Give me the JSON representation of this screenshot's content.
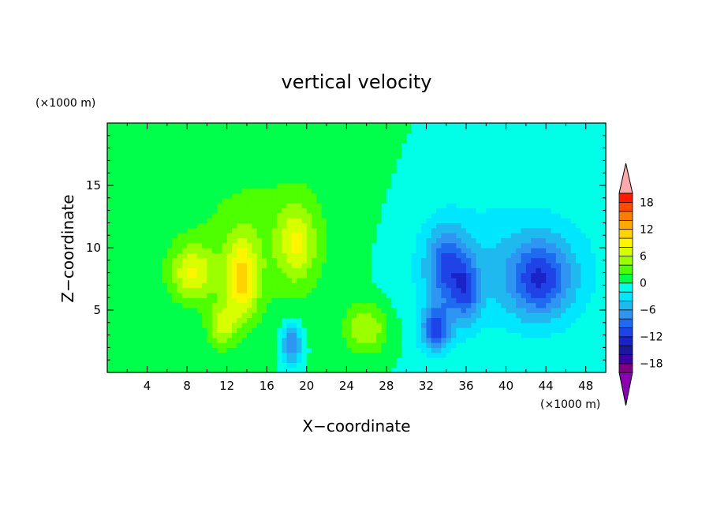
{
  "chart_data": {
    "type": "heatmap",
    "title": "vertical velocity",
    "xlabel": "X−coordinate",
    "ylabel": "Z−coordinate",
    "x_unit": "(×1000 m)",
    "y_unit": "(×1000 m)",
    "xlim": [
      0,
      50
    ],
    "ylim": [
      0,
      20
    ],
    "x_ticks": [
      4,
      8,
      12,
      16,
      20,
      24,
      28,
      32,
      36,
      40,
      44,
      48
    ],
    "y_ticks": [
      5,
      10,
      15
    ],
    "colorbar": {
      "min": -20,
      "max": 20,
      "step": 2,
      "tick_values": [
        18,
        12,
        6,
        0,
        -6,
        -12,
        -18
      ],
      "tick_labels": [
        "18",
        "12",
        "6",
        "0",
        "−6",
        "−12",
        "−18"
      ],
      "extend": "both",
      "colors": [
        "#7f007f",
        "#3d00a8",
        "#1d17a0",
        "#1a23c8",
        "#1f43e6",
        "#1f6bf0",
        "#2f95f2",
        "#1fb9f0",
        "#00e6ff",
        "#00ffe6",
        "#00ff4a",
        "#4dff00",
        "#9cff00",
        "#d8ff00",
        "#fff500",
        "#ffd200",
        "#ffa800",
        "#ff7c00",
        "#ff4a00",
        "#ff1a00"
      ],
      "over_color": "#ffaaaa",
      "under_color": "#8a00b3"
    },
    "features": [
      {
        "x": 8.5,
        "z": 8.0,
        "amp": 7,
        "sx": 2.2,
        "sz": 2.2
      },
      {
        "x": 13.5,
        "z": 7.5,
        "amp": 9,
        "sx": 1.6,
        "sz": 3.2
      },
      {
        "x": 11.5,
        "z": 3.8,
        "amp": 6,
        "sx": 1.4,
        "sz": 1.8
      },
      {
        "x": 19.0,
        "z": 10.5,
        "amp": 6,
        "sx": 1.8,
        "sz": 3.0
      },
      {
        "x": 26.0,
        "z": 3.5,
        "amp": 6,
        "sx": 2.2,
        "sz": 2.0
      },
      {
        "x": 15.5,
        "z": 10.5,
        "amp": 3,
        "sx": 9.0,
        "sz": 6.5
      },
      {
        "x": 18.5,
        "z": 2.3,
        "amp": -9,
        "sx": 1.0,
        "sz": 1.6
      },
      {
        "x": 34.0,
        "z": 8.5,
        "amp": -8,
        "sx": 2.0,
        "sz": 3.2
      },
      {
        "x": 33.0,
        "z": 3.5,
        "amp": -10,
        "sx": 1.5,
        "sz": 1.8
      },
      {
        "x": 36.0,
        "z": 6.5,
        "amp": -7,
        "sx": 1.4,
        "sz": 2.5
      },
      {
        "x": 43.5,
        "z": 7.5,
        "amp": -9,
        "sx": 3.0,
        "sz": 3.0
      },
      {
        "x": 40.0,
        "z": 8.5,
        "amp": -4,
        "sx": 10.0,
        "sz": 5.5
      }
    ]
  }
}
